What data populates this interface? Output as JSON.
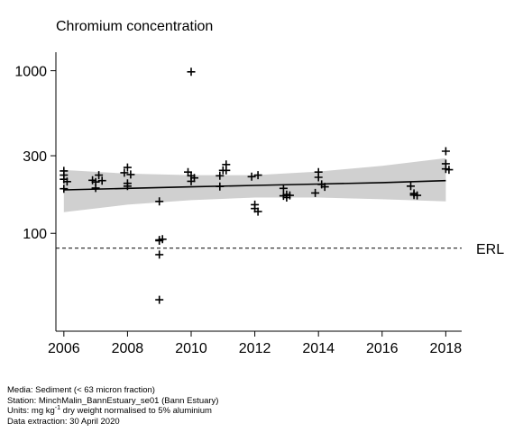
{
  "chart_data": {
    "type": "scatter",
    "title": "Chromium concentration",
    "xlabel": "",
    "ylabel": "",
    "x_ticks": [
      2006,
      2008,
      2010,
      2012,
      2014,
      2016,
      2018
    ],
    "y_ticks": [
      100,
      300,
      1000
    ],
    "y_scale": "log",
    "ylim": [
      25,
      1300
    ],
    "xlim": [
      2005.75,
      2018.5
    ],
    "reference_line": {
      "label": "ERL",
      "value": 81,
      "style": "dashed"
    },
    "trend": {
      "x": [
        2006,
        2008,
        2010,
        2012,
        2014,
        2016,
        2018
      ],
      "fitted": [
        185,
        189,
        193,
        197,
        201,
        205,
        211
      ],
      "lower": [
        135,
        150,
        160,
        166,
        166,
        162,
        157
      ],
      "upper": [
        245,
        233,
        228,
        228,
        240,
        260,
        290
      ]
    },
    "series": [
      {
        "marker": "+",
        "points": [
          {
            "x": 2006.0,
            "y": 242
          },
          {
            "x": 2006.0,
            "y": 228
          },
          {
            "x": 2006.0,
            "y": 215
          },
          {
            "x": 2006.1,
            "y": 208
          },
          {
            "x": 2006.0,
            "y": 188
          },
          {
            "x": 2006.9,
            "y": 212
          },
          {
            "x": 2007.0,
            "y": 207
          },
          {
            "x": 2007.1,
            "y": 228
          },
          {
            "x": 2007.2,
            "y": 211
          },
          {
            "x": 2007.0,
            "y": 190
          },
          {
            "x": 2008.0,
            "y": 254
          },
          {
            "x": 2007.9,
            "y": 236
          },
          {
            "x": 2008.1,
            "y": 230
          },
          {
            "x": 2008.0,
            "y": 203
          },
          {
            "x": 2008.0,
            "y": 195
          },
          {
            "x": 2009.0,
            "y": 157
          },
          {
            "x": 2009.0,
            "y": 91
          },
          {
            "x": 2009.1,
            "y": 92
          },
          {
            "x": 2009.0,
            "y": 90
          },
          {
            "x": 2009.0,
            "y": 74
          },
          {
            "x": 2009.0,
            "y": 39
          },
          {
            "x": 2010.0,
            "y": 985
          },
          {
            "x": 2009.9,
            "y": 238
          },
          {
            "x": 2010.0,
            "y": 226
          },
          {
            "x": 2010.1,
            "y": 219
          },
          {
            "x": 2010.0,
            "y": 209
          },
          {
            "x": 2010.9,
            "y": 226
          },
          {
            "x": 2011.0,
            "y": 244
          },
          {
            "x": 2011.1,
            "y": 244
          },
          {
            "x": 2011.1,
            "y": 265
          },
          {
            "x": 2010.9,
            "y": 194
          },
          {
            "x": 2011.9,
            "y": 223
          },
          {
            "x": 2012.1,
            "y": 228
          },
          {
            "x": 2012.0,
            "y": 150
          },
          {
            "x": 2012.0,
            "y": 142
          },
          {
            "x": 2012.1,
            "y": 136
          },
          {
            "x": 2012.9,
            "y": 189
          },
          {
            "x": 2012.9,
            "y": 170
          },
          {
            "x": 2013.0,
            "y": 173
          },
          {
            "x": 2013.1,
            "y": 171
          },
          {
            "x": 2013.0,
            "y": 166
          },
          {
            "x": 2014.0,
            "y": 238
          },
          {
            "x": 2014.0,
            "y": 221
          },
          {
            "x": 2014.1,
            "y": 200
          },
          {
            "x": 2014.2,
            "y": 193
          },
          {
            "x": 2013.9,
            "y": 177
          },
          {
            "x": 2016.9,
            "y": 195
          },
          {
            "x": 2017.0,
            "y": 176
          },
          {
            "x": 2017.0,
            "y": 172
          },
          {
            "x": 2017.1,
            "y": 171
          },
          {
            "x": 2018.0,
            "y": 320
          },
          {
            "x": 2018.0,
            "y": 268
          },
          {
            "x": 2018.0,
            "y": 249
          },
          {
            "x": 2018.1,
            "y": 246
          }
        ]
      }
    ]
  },
  "footer": {
    "media": "Media: Sediment (< 63 micron fraction)",
    "station": "Station: MinchMalin_BannEstuary_se01 (Bann Estuary)",
    "units_prefix": "Units:  mg kg",
    "units_sup": "-1",
    "units_suffix": " dry weight normalised to 5% aluminium",
    "extraction": "Data extraction: 30 April 2020"
  },
  "colors": {
    "band": "#d0d0d0",
    "line": "#000000",
    "marker": "#000000"
  }
}
